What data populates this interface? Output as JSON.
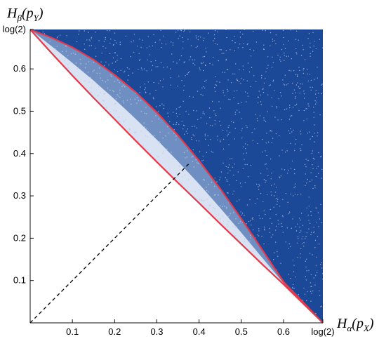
{
  "chart_data": {
    "type": "area",
    "title": "",
    "xlabel": {
      "main": "H",
      "sub": "α",
      "open": "(p",
      "psub": "X",
      "close": ")"
    },
    "ylabel": {
      "main": "H",
      "sub": "β",
      "open": "(p",
      "psub": "Y",
      "close": ")"
    },
    "xlim": [
      0,
      0.6931
    ],
    "ylim": [
      0,
      0.6931
    ],
    "x_ticks": [
      {
        "value": 0.1,
        "label": "0.1"
      },
      {
        "value": 0.2,
        "label": "0.2"
      },
      {
        "value": 0.3,
        "label": "0.3"
      },
      {
        "value": 0.4,
        "label": "0.4"
      },
      {
        "value": 0.5,
        "label": "0.5"
      },
      {
        "value": 0.6,
        "label": "0.6"
      },
      {
        "value": 0.6931,
        "label": "log(2)"
      }
    ],
    "y_ticks": [
      {
        "value": 0.1,
        "label": "0.1"
      },
      {
        "value": 0.2,
        "label": "0.2"
      },
      {
        "value": 0.3,
        "label": "0.3"
      },
      {
        "value": 0.4,
        "label": "0.4"
      },
      {
        "value": 0.5,
        "label": "0.5"
      },
      {
        "value": 0.6,
        "label": "0.6"
      },
      {
        "value": 0.6931,
        "label": "log(2)"
      }
    ],
    "lower_boundary": {
      "x": [
        0,
        0.05,
        0.1,
        0.15,
        0.2,
        0.25,
        0.3,
        0.35,
        0.4,
        0.45,
        0.5,
        0.55,
        0.6,
        0.6931
      ],
      "y": [
        0.6931,
        0.638,
        0.584,
        0.532,
        0.481,
        0.43,
        0.38,
        0.331,
        0.283,
        0.234,
        0.186,
        0.138,
        0.091,
        0
      ]
    },
    "upper_boundary": {
      "x": [
        0,
        0.05,
        0.1,
        0.15,
        0.2,
        0.25,
        0.3,
        0.35,
        0.4,
        0.45,
        0.5,
        0.55,
        0.6,
        0.6931
      ],
      "y": [
        0.6931,
        0.674,
        0.651,
        0.622,
        0.586,
        0.545,
        0.497,
        0.443,
        0.383,
        0.317,
        0.246,
        0.172,
        0.097,
        0
      ]
    },
    "reference_line": {
      "x": [
        0,
        0.375
      ],
      "y": [
        0,
        0.375
      ],
      "style": "dashed"
    },
    "colors": {
      "dark_region": "#1c4898",
      "middle_region": "#6f8ec2",
      "light_region": "#d9e2f2",
      "light_dots": "#b9cbe8",
      "dark_dots": "#ffffff",
      "boundary": "#e23a4a",
      "reference_line": "#000000",
      "axis": "#111111"
    },
    "grid": false,
    "legend": "none"
  }
}
